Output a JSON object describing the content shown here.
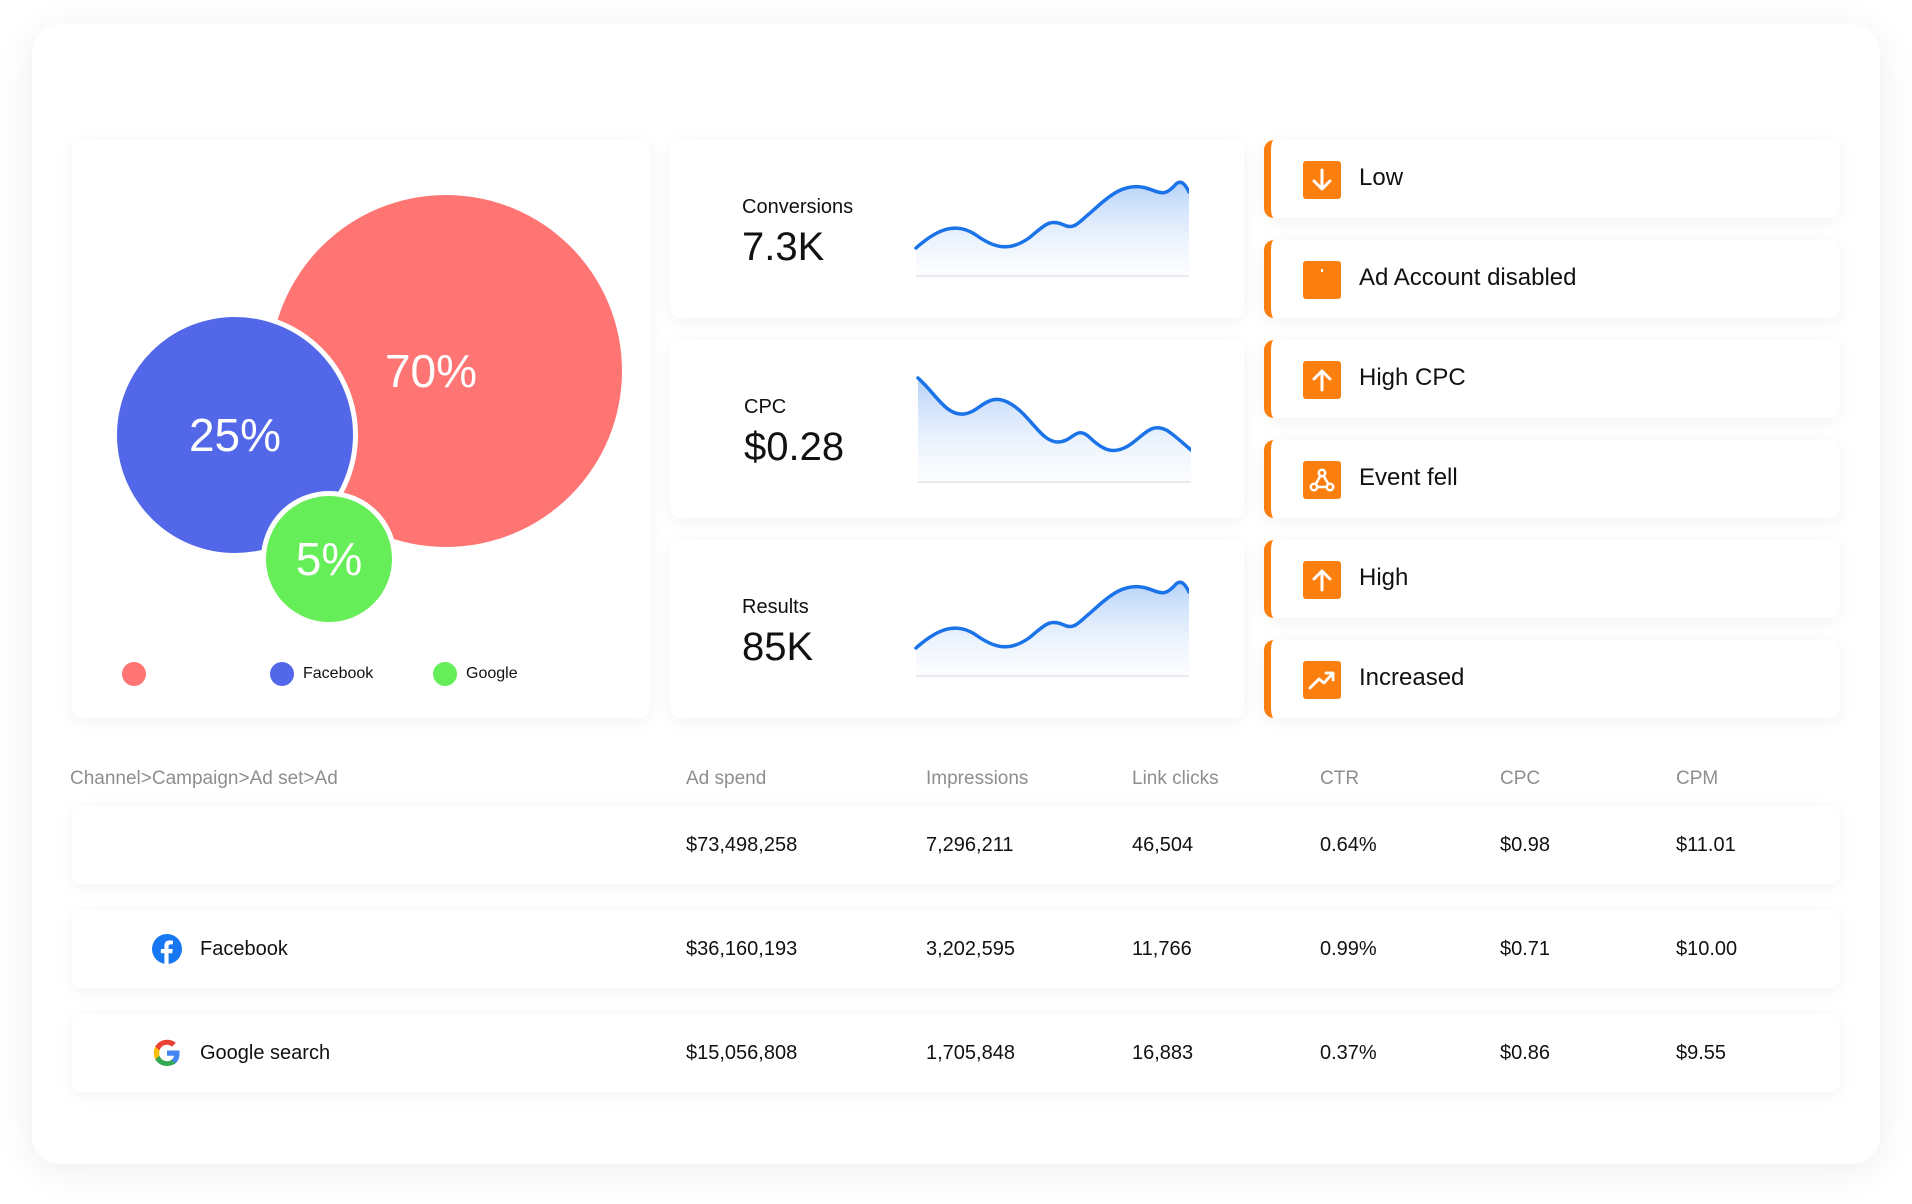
{
  "bubble_chart": {
    "bubbles": [
      {
        "label": "70%",
        "color": "#fe7573"
      },
      {
        "label": "25%",
        "color": "#5368e8"
      },
      {
        "label": "5%",
        "color": "#66ee59"
      }
    ],
    "legend": [
      {
        "name": "",
        "color": "#fe7573"
      },
      {
        "name": "Facebook",
        "color": "#5368e8"
      },
      {
        "name": "Google",
        "color": "#66ee59"
      }
    ]
  },
  "metrics": [
    {
      "label": "Conversions",
      "value": "7.3K"
    },
    {
      "label": "CPC",
      "value": "$0.28"
    },
    {
      "label": "Results",
      "value": "85K"
    }
  ],
  "alerts": [
    {
      "label": "Low",
      "icon": "arrow-down-icon"
    },
    {
      "label": "Ad Account disabled",
      "icon": "alert-icon"
    },
    {
      "label": "High CPC",
      "icon": "arrow-up-icon"
    },
    {
      "label": "Event fell",
      "icon": "network-icon"
    },
    {
      "label": "High",
      "icon": "arrow-up-icon"
    },
    {
      "label": "Increased",
      "icon": "trend-up-icon"
    }
  ],
  "table": {
    "headers": [
      "Channel>Campaign>Ad set>Ad",
      "Ad spend",
      "Impressions",
      "Link clicks",
      "CTR",
      "CPC",
      "CPM"
    ],
    "rows": [
      {
        "channel": "",
        "icon": "",
        "ad_spend": "$73,498,258",
        "impressions": "7,296,211",
        "link_clicks": "46,504",
        "ctr": "0.64%",
        "cpc": "$0.98",
        "cpm": "$11.01"
      },
      {
        "channel": "Facebook",
        "icon": "facebook-icon",
        "ad_spend": "$36,160,193",
        "impressions": "3,202,595",
        "link_clicks": "11,766",
        "ctr": "0.99%",
        "cpc": "$0.71",
        "cpm": "$10.00"
      },
      {
        "channel": "Google search",
        "icon": "google-icon",
        "ad_spend": "$15,056,808",
        "impressions": "1,705,848",
        "link_clicks": "16,883",
        "ctr": "0.37%",
        "cpc": "$0.86",
        "cpm": "$9.55"
      }
    ]
  },
  "colors": {
    "accent": "#fb7f0e",
    "sparkline": "#1a73e8"
  }
}
